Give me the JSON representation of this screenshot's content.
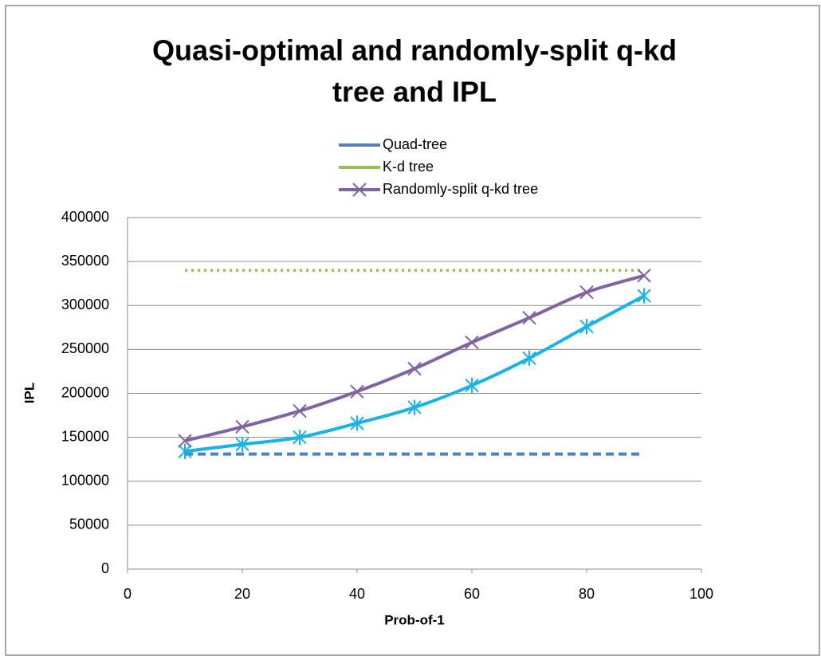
{
  "chart_data": {
    "type": "line",
    "title": [
      "Quasi-optimal and randomly-split q-kd",
      "tree and IPL"
    ],
    "xlabel": "Prob-of-1",
    "ylabel": "IPL",
    "x": [
      10,
      20,
      30,
      40,
      50,
      60,
      70,
      80,
      90
    ],
    "series": [
      {
        "name": "Quad-tree",
        "color": "#4f81bd",
        "style": "dashed",
        "smooth": false,
        "values": [
          131000,
          131000,
          131000,
          131000,
          131000,
          131000,
          131000,
          131000,
          131000
        ]
      },
      {
        "name": "K-d tree",
        "color": "#9bbb59",
        "style": "dotted",
        "smooth": false,
        "values": [
          340000,
          340000,
          340000,
          340000,
          340000,
          340000,
          340000,
          340000,
          340000
        ]
      },
      {
        "name": "Randomly-split q-kd tree",
        "color": "#8064a2",
        "style": "solid",
        "marker": "x",
        "smooth": true,
        "values": [
          146000,
          162000,
          180000,
          202000,
          228000,
          258000,
          286000,
          315000,
          334000
        ]
      },
      {
        "color": "#17b3e6",
        "style": "solid",
        "marker": "asterisk",
        "smooth": true,
        "values": [
          134000,
          142000,
          150000,
          166000,
          184000,
          209000,
          240000,
          276000,
          311000
        ]
      }
    ],
    "xlim": [
      0,
      100
    ],
    "xticks": [
      0,
      20,
      40,
      60,
      80,
      100
    ],
    "ylim": [
      0,
      400000
    ],
    "yticks": [
      0,
      50000,
      100000,
      150000,
      200000,
      250000,
      300000,
      350000,
      400000
    ],
    "grid": true,
    "legend": "top"
  }
}
